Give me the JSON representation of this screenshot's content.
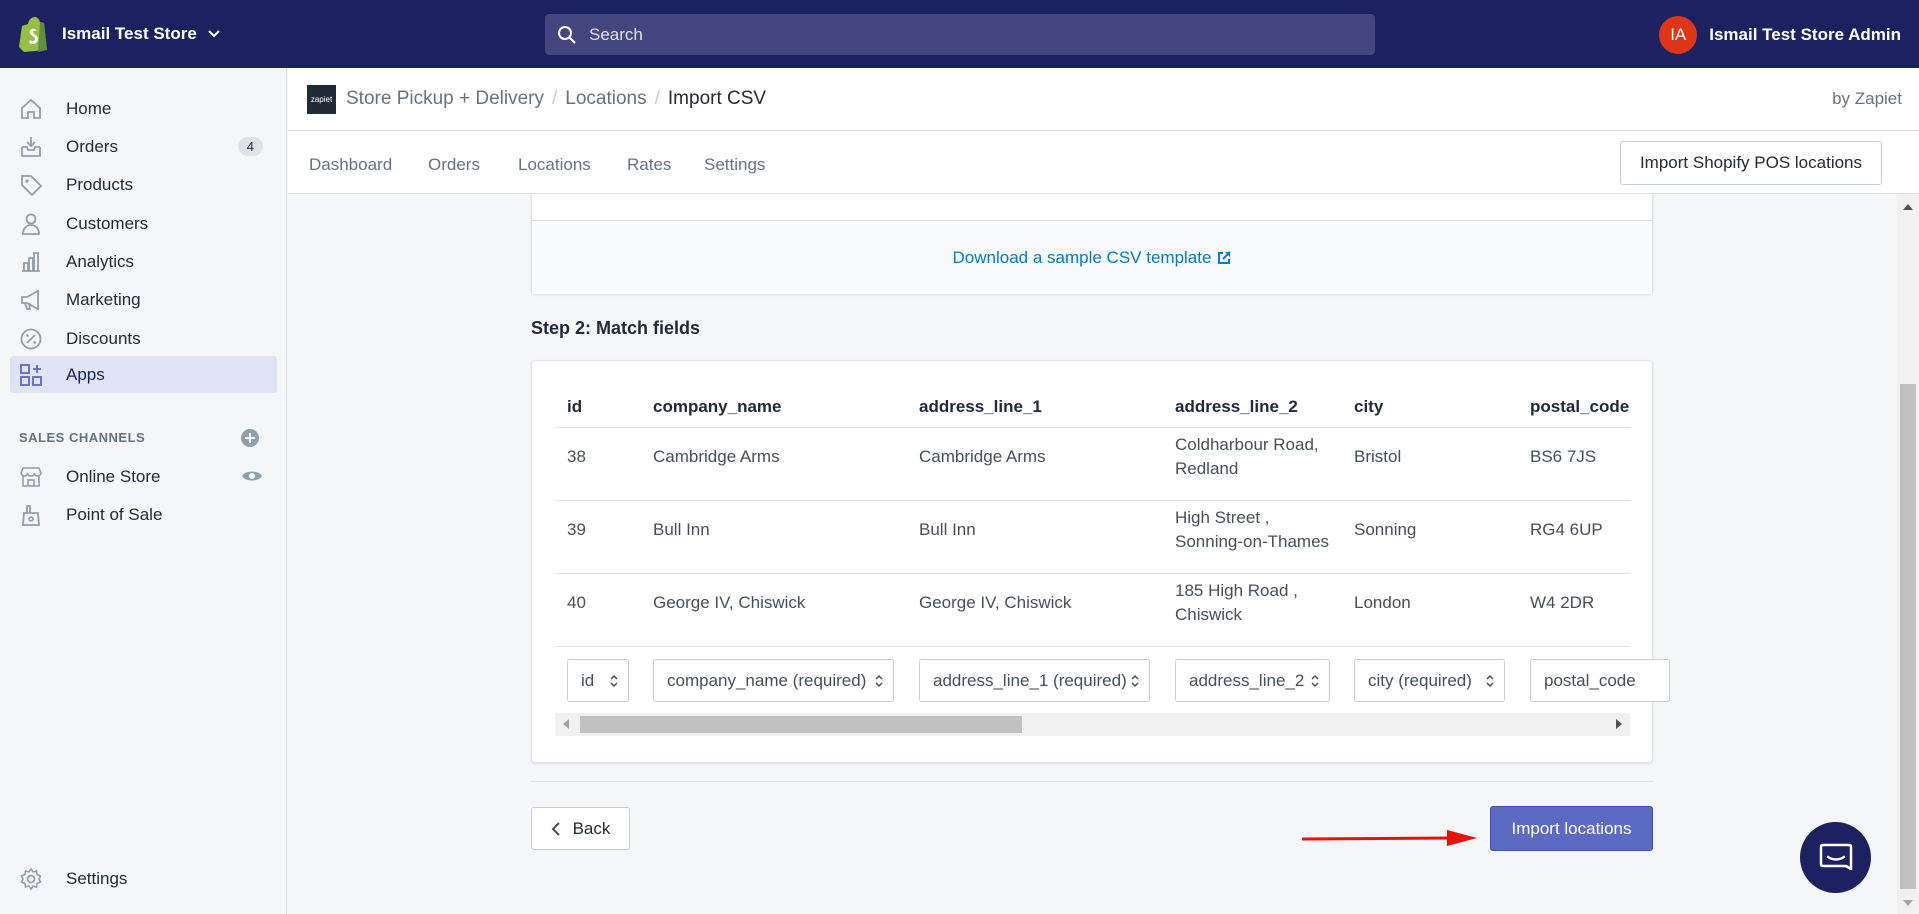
{
  "topbar": {
    "store_name": "Ismail Test Store",
    "search_placeholder": "Search",
    "avatar_initials": "IA",
    "user_name": "Ismail Test Store Admin"
  },
  "sidebar": {
    "items": [
      {
        "label": "Home",
        "icon": "home-icon"
      },
      {
        "label": "Orders",
        "icon": "orders-icon",
        "badge": "4"
      },
      {
        "label": "Products",
        "icon": "tag-icon"
      },
      {
        "label": "Customers",
        "icon": "person-icon"
      },
      {
        "label": "Analytics",
        "icon": "bar-chart-icon"
      },
      {
        "label": "Marketing",
        "icon": "megaphone-icon"
      },
      {
        "label": "Discounts",
        "icon": "discount-icon"
      },
      {
        "label": "Apps",
        "icon": "apps-icon",
        "active": true
      }
    ],
    "sales_channels_title": "SALES CHANNELS",
    "channels": [
      {
        "label": "Online Store",
        "icon": "store-icon"
      },
      {
        "label": "Point of Sale",
        "icon": "pos-icon"
      }
    ],
    "settings_label": "Settings"
  },
  "app_header": {
    "logo_text": "zapiet",
    "breadcrumb": [
      "Store Pickup + Delivery",
      "Locations"
    ],
    "current": "Import CSV",
    "by": "by Zapiet"
  },
  "tabs": [
    "Dashboard",
    "Orders",
    "Locations",
    "Rates",
    "Settings"
  ],
  "import_pos_label": "Import Shopify POS locations",
  "download_link": "Download a sample CSV template",
  "step2_title": "Step 2: Match fields",
  "table": {
    "headers": [
      "id",
      "company_name",
      "address_line_1",
      "address_line_2",
      "city",
      "postal_code"
    ],
    "rows": [
      [
        "38",
        "Cambridge Arms",
        "Cambridge Arms",
        "Coldharbour Road, Redland",
        "Bristol",
        "BS6 7JS"
      ],
      [
        "39",
        "Bull Inn",
        "Bull Inn",
        "High Street , Sonning-on-Thames",
        "Sonning",
        "RG4 6UP"
      ],
      [
        "40",
        "George IV, Chiswick",
        "George IV, Chiswick",
        "185 High Road , Chiswick",
        "London",
        "W4 2DR"
      ]
    ],
    "selects": [
      "id",
      "company_name (required)",
      "address_line_1 (required)",
      "address_line_2",
      "city (required)",
      "postal_code"
    ]
  },
  "back_label": "Back",
  "import_label": "Import locations",
  "colors": {
    "topbar": "#1c2260",
    "primary_button": "#5c6ac4",
    "link": "#007ace",
    "avatar": "#de3618",
    "annotation_arrow": "#e8120c"
  }
}
